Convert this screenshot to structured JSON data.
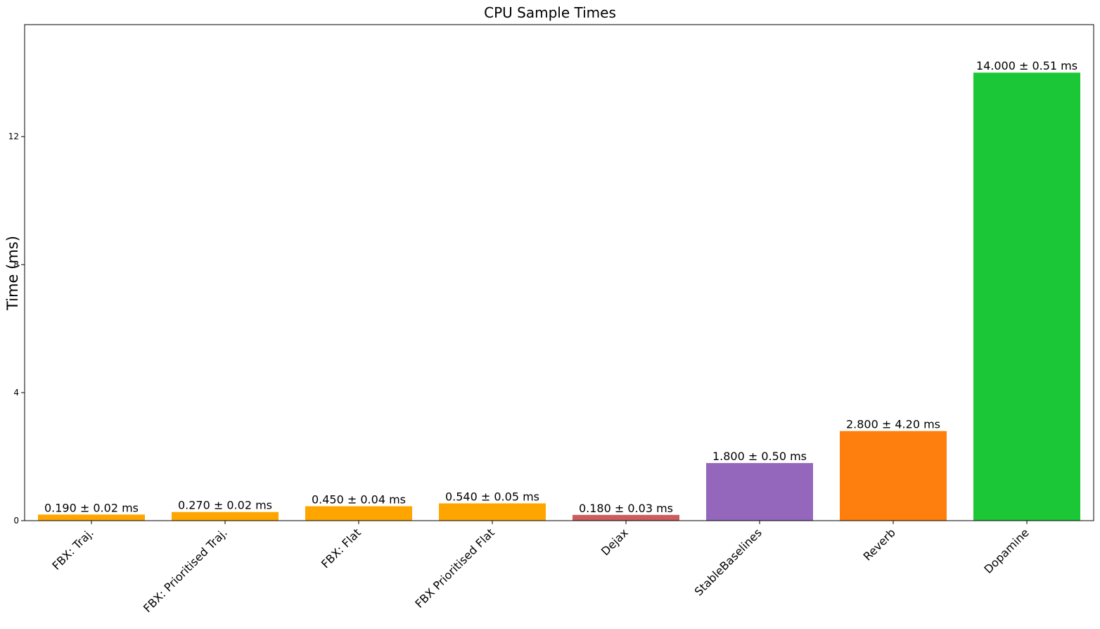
{
  "chart_data": {
    "type": "bar",
    "title": "CPU Sample Times",
    "xlabel": "",
    "ylabel": "Time (ms)",
    "ylim": [
      0,
      15.5
    ],
    "yticks": [
      0,
      4,
      8,
      12
    ],
    "grid": false,
    "categories": [
      "FBX: Traj.",
      "FBX: Prioritised Traj.",
      "FBX: Flat",
      "FBX Prioritised Flat",
      "Dejax",
      "StableBaselines",
      "Reverb",
      "Dopamine"
    ],
    "values": [
      0.19,
      0.27,
      0.45,
      0.54,
      0.18,
      1.8,
      2.8,
      14.0
    ],
    "errors": [
      0.02,
      0.02,
      0.04,
      0.05,
      0.03,
      0.5,
      4.2,
      0.51
    ],
    "data_labels": [
      "0.190 ± 0.02 ms",
      "0.270 ± 0.02 ms",
      "0.450 ± 0.04 ms",
      "0.540 ± 0.05 ms",
      "0.180 ± 0.03 ms",
      "1.800 ± 0.50 ms",
      "2.800 ± 4.20 ms",
      "14.000 ± 0.51 ms"
    ],
    "colors": [
      "#ffa500",
      "#ffa500",
      "#ffa500",
      "#ffa500",
      "#cd5c5c",
      "#9467bd",
      "#ff7f0e",
      "#1bc737"
    ]
  }
}
